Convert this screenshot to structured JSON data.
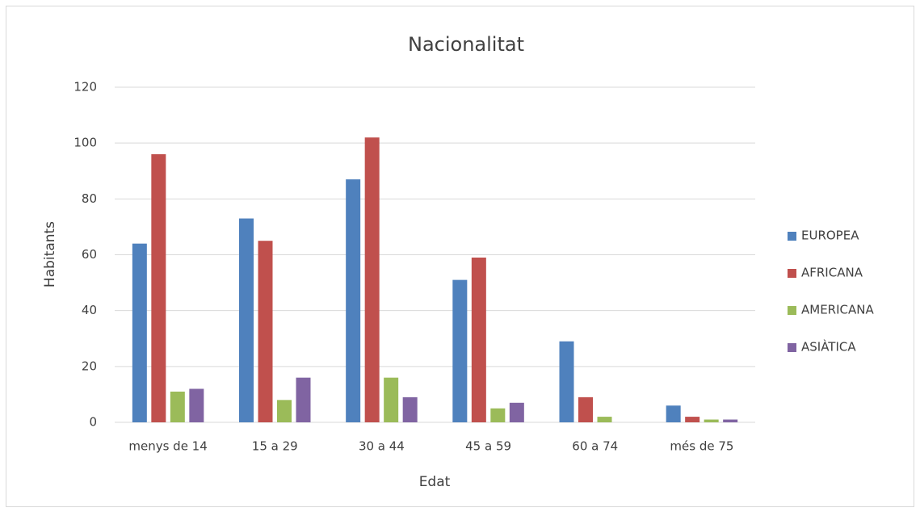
{
  "chart_data": {
    "type": "bar",
    "title": "Nacionalitat",
    "x_label": "Edat",
    "y_label": "Habitants",
    "categories": [
      "menys de 14",
      "15 a 29",
      "30 a 44",
      "45 a 59",
      "60 a 74",
      "més de 75"
    ],
    "series": [
      {
        "name": "EUROPEA",
        "color": "#4f81bd",
        "values": [
          64,
          73,
          87,
          51,
          29,
          6
        ]
      },
      {
        "name": "AFRICANA",
        "color": "#c0504d",
        "values": [
          96,
          65,
          102,
          59,
          9,
          2
        ]
      },
      {
        "name": "AMERICANA",
        "color": "#9bbb59",
        "values": [
          11,
          8,
          16,
          5,
          2,
          1
        ]
      },
      {
        "name": "ASIÀTICA",
        "color": "#8064a2",
        "values": [
          12,
          16,
          9,
          7,
          0,
          1
        ]
      }
    ],
    "ylim": [
      0,
      120
    ],
    "yticks": [
      0,
      20,
      40,
      60,
      80,
      100,
      120
    ],
    "grid": true,
    "legend": "right"
  }
}
